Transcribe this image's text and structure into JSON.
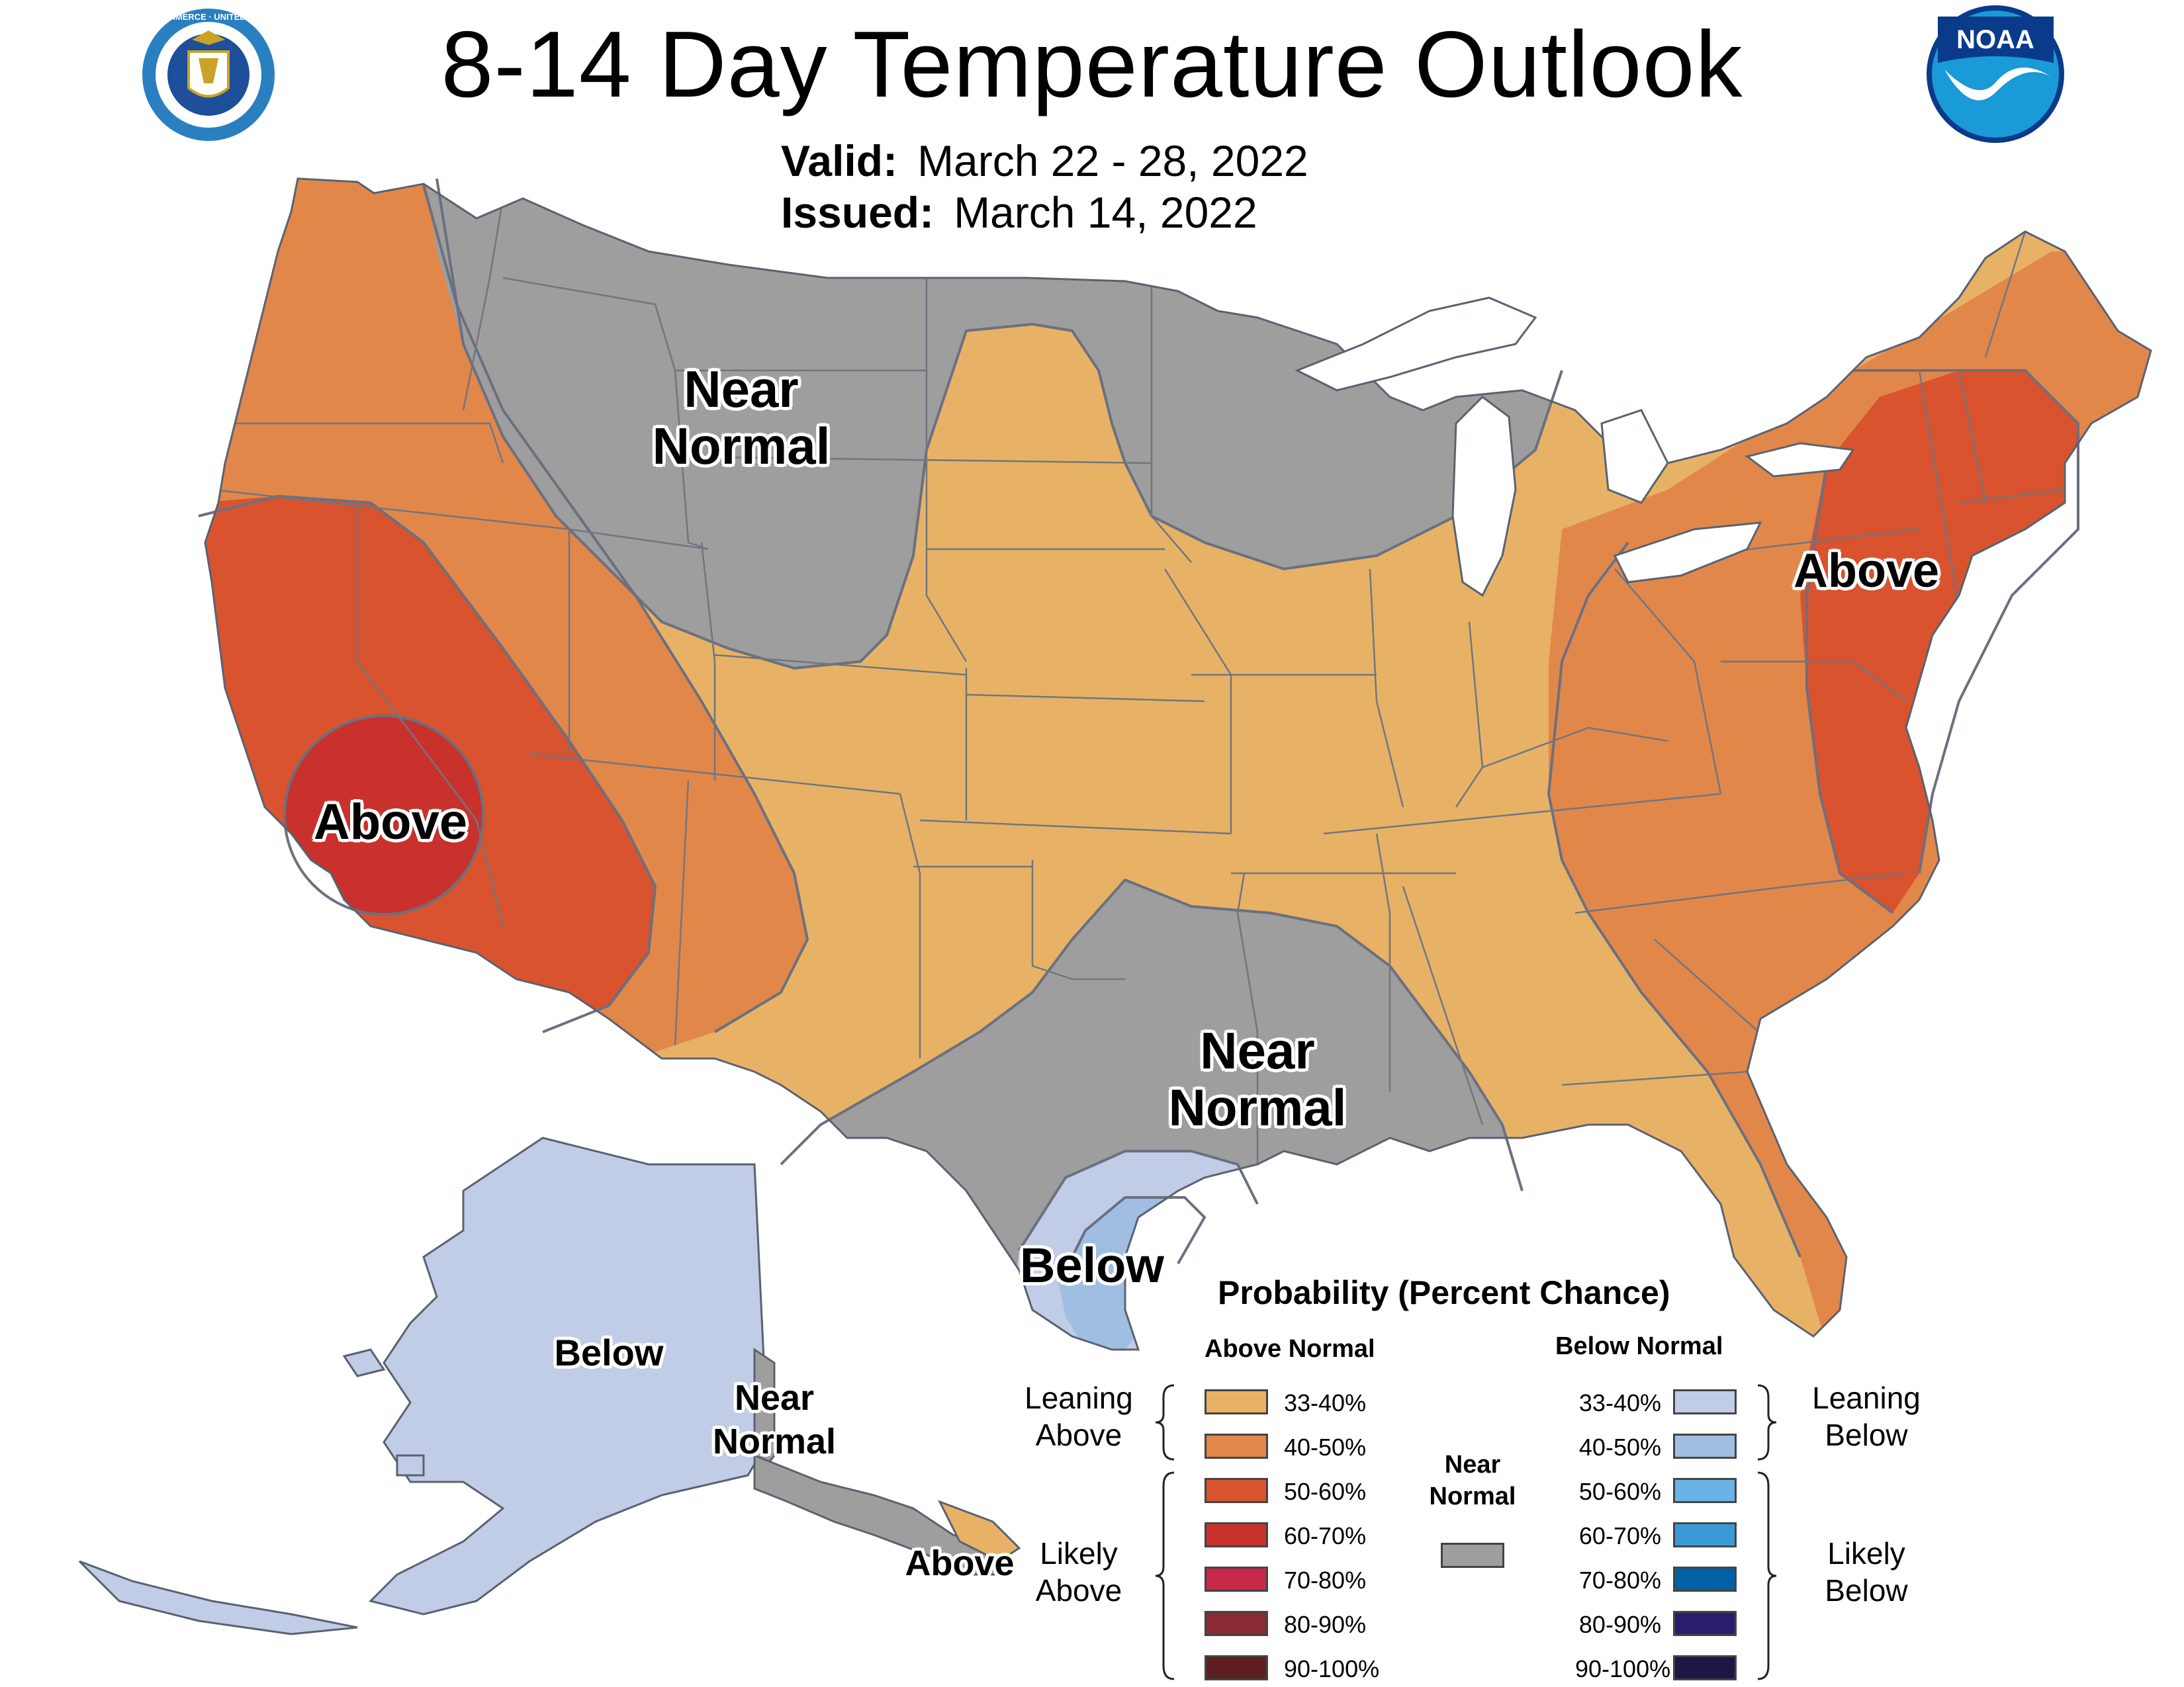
{
  "title": "8-14 Day Temperature Outlook",
  "valid": {
    "label": "Valid:",
    "value": "March 22 - 28, 2022"
  },
  "issued": {
    "label": "Issued:",
    "value": "March 14, 2022"
  },
  "logos": {
    "left": {
      "name": "department-of-commerce-seal",
      "text": "DEPARTMENT OF COMMERCE · UNITED STATES OF AMERICA"
    },
    "right": {
      "name": "noaa-logo",
      "text": "NOAA"
    }
  },
  "colors": {
    "above_33_40": "#E8B266",
    "above_40_50": "#E2874A",
    "above_50_60": "#D9532F",
    "above_60_70": "#C8312C",
    "above_70_80": "#C8284A",
    "above_80_90": "#8B2A35",
    "above_90_100": "#5E1E22",
    "near_normal": "#9E9E9E",
    "below_33_40": "#C1CCE6",
    "below_40_50": "#A0BEE2",
    "below_50_60": "#6BB2E6",
    "below_60_70": "#3A9AD8",
    "below_70_80": "#0060A8",
    "below_80_90": "#2C1C6E",
    "below_90_100": "#1E1646",
    "outline": "#5f6f80",
    "lakes": "#ffffff"
  },
  "map_labels": {
    "near_normal_north": [
      "Near",
      "Normal"
    ],
    "above_california": "Above",
    "above_northeast": "Above",
    "near_normal_south": [
      "Near",
      "Normal"
    ],
    "below_texas": "Below",
    "alaska_below": "Below",
    "alaska_near_normal": [
      "Near",
      "Normal"
    ],
    "alaska_above": "Above"
  },
  "legend": {
    "title": "Probability (Percent Chance)",
    "above_header": "Above Normal",
    "below_header": "Below Normal",
    "near_normal_label": [
      "Near",
      "Normal"
    ],
    "leaning_above": [
      "Leaning",
      "Above"
    ],
    "likely_above": [
      "Likely",
      "Above"
    ],
    "leaning_below": [
      "Leaning",
      "Below"
    ],
    "likely_below": [
      "Likely",
      "Below"
    ],
    "above_categories": [
      "33-40%",
      "40-50%",
      "50-60%",
      "60-70%",
      "70-80%",
      "80-90%",
      "90-100%"
    ],
    "below_categories": [
      "33-40%",
      "40-50%",
      "50-60%",
      "60-70%",
      "70-80%",
      "80-90%",
      "90-100%"
    ]
  }
}
